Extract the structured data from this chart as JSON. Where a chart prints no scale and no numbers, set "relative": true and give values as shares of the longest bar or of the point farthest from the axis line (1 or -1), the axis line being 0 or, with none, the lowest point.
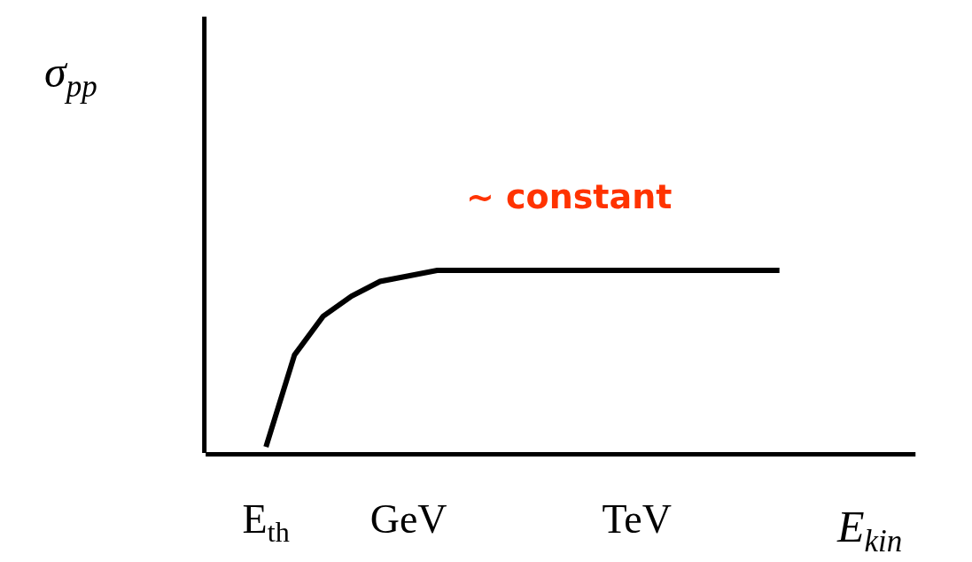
{
  "chart_data": {
    "type": "line",
    "relative": true,
    "xlabel": "E$_{kin}$",
    "ylabel": "σ$_{pp}$",
    "categories": [
      "E$_{th}$",
      null,
      null,
      null,
      null,
      "GeV",
      null,
      null,
      null,
      null,
      null,
      null,
      null,
      "TeV",
      null,
      null,
      null,
      null,
      null
    ],
    "series": [
      {
        "color": "#000000",
        "values": [
          0.04,
          0.54,
          0.75,
          0.86,
          0.94,
          0.97,
          1,
          1,
          1,
          1,
          1,
          1,
          1,
          1,
          1,
          1,
          1,
          1,
          1
        ]
      }
    ],
    "annotations": [
      "~ constant"
    ],
    "legend": false,
    "marker": "none",
    "line_style": "solid"
  }
}
